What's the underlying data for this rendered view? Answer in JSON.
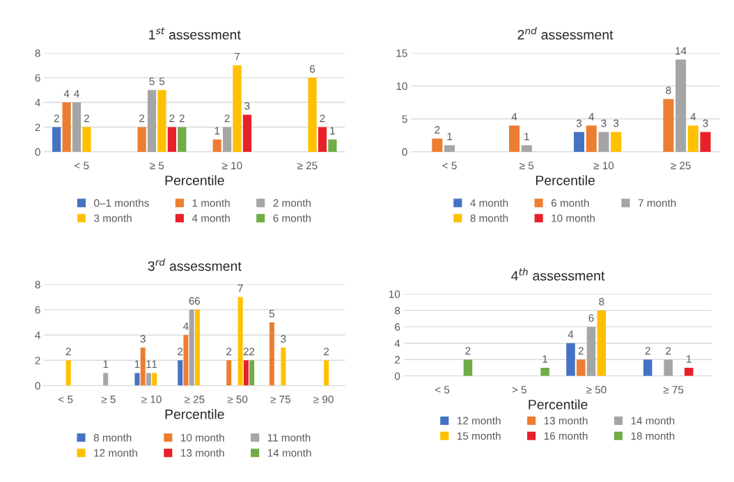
{
  "chart_data": [
    {
      "type": "bar",
      "title": "1$^{st}$ assessment",
      "xlabel": "Percentile",
      "categories": [
        "< 5",
        "≥ 5",
        "≥ 10",
        "≥ 25"
      ],
      "ylim": [
        0,
        8
      ],
      "yticks": [
        0,
        2,
        4,
        6,
        8
      ],
      "grid": "y",
      "legend": "bottom",
      "data_labels": true,
      "series": [
        {
          "name": "0–1 months",
          "color": "#4472c4",
          "values": [
            2,
            null,
            null,
            null
          ]
        },
        {
          "name": "1 month",
          "color": "#ed7d31",
          "values": [
            4,
            2,
            1,
            null
          ]
        },
        {
          "name": "2 month",
          "color": "#a5a5a5",
          "values": [
            4,
            5,
            2,
            null
          ]
        },
        {
          "name": "3 month",
          "color": "#ffc000",
          "values": [
            2,
            5,
            7,
            6
          ]
        },
        {
          "name": "4 month",
          "color": "#e8202a",
          "values": [
            null,
            2,
            3,
            2
          ]
        },
        {
          "name": "6 month",
          "color": "#70ad47",
          "values": [
            null,
            2,
            null,
            1
          ]
        }
      ]
    },
    {
      "type": "bar",
      "title": "2$^{nd}$ assessment",
      "xlabel": "Percentile",
      "categories": [
        "< 5",
        "≥ 5",
        "≥ 10",
        "≥ 25"
      ],
      "ylim": [
        0,
        15
      ],
      "yticks": [
        0,
        5,
        10,
        15
      ],
      "grid": "y",
      "legend": "bottom",
      "data_labels": true,
      "series": [
        {
          "name": "4 month",
          "color": "#4472c4",
          "values": [
            null,
            null,
            3,
            null
          ]
        },
        {
          "name": "6 month",
          "color": "#ed7d31",
          "values": [
            2,
            4,
            4,
            8
          ]
        },
        {
          "name": "7 month",
          "color": "#a5a5a5",
          "values": [
            1,
            1,
            3,
            14
          ]
        },
        {
          "name": "8 month",
          "color": "#ffc000",
          "values": [
            null,
            null,
            3,
            4
          ]
        },
        {
          "name": "10 month",
          "color": "#e8202a",
          "values": [
            null,
            null,
            null,
            3
          ]
        }
      ]
    },
    {
      "type": "bar",
      "title": "3$^{rd}$ assessment",
      "xlabel": "Percentile",
      "categories": [
        "< 5",
        "≥ 5",
        "≥ 10",
        "≥ 25",
        "≥ 50",
        "≥ 75",
        "≥ 90"
      ],
      "ylim": [
        0,
        8
      ],
      "yticks": [
        0,
        2,
        4,
        6,
        8
      ],
      "grid": "y",
      "legend": "bottom",
      "data_labels": true,
      "series": [
        {
          "name": "8 month",
          "color": "#4472c4",
          "values": [
            null,
            null,
            1,
            2,
            null,
            null,
            null
          ]
        },
        {
          "name": "10 month",
          "color": "#ed7d31",
          "values": [
            null,
            null,
            3,
            4,
            2,
            5,
            null
          ]
        },
        {
          "name": "11 month",
          "color": "#a5a5a5",
          "values": [
            null,
            1,
            1,
            6,
            null,
            null,
            null
          ]
        },
        {
          "name": "12 month",
          "color": "#ffc000",
          "values": [
            2,
            null,
            1,
            6,
            7,
            3,
            2
          ]
        },
        {
          "name": "13 month",
          "color": "#e8202a",
          "values": [
            null,
            null,
            null,
            null,
            2,
            null,
            null
          ]
        },
        {
          "name": "14 month",
          "color": "#70ad47",
          "values": [
            null,
            null,
            null,
            null,
            2,
            null,
            null
          ]
        }
      ]
    },
    {
      "type": "bar",
      "title": "4$^{th}$ assessment",
      "xlabel": "Percentile",
      "categories": [
        "< 5",
        "> 5",
        "≥ 50",
        "≥ 75"
      ],
      "ylim": [
        0,
        10
      ],
      "yticks": [
        0,
        2,
        4,
        6,
        8,
        10
      ],
      "grid": "y",
      "legend": "bottom",
      "data_labels": true,
      "series": [
        {
          "name": "12 month",
          "color": "#4472c4",
          "values": [
            null,
            null,
            4,
            2
          ]
        },
        {
          "name": "13 month",
          "color": "#ed7d31",
          "values": [
            null,
            null,
            2,
            null
          ]
        },
        {
          "name": "14 month",
          "color": "#a5a5a5",
          "values": [
            null,
            null,
            6,
            2
          ]
        },
        {
          "name": "15 month",
          "color": "#ffc000",
          "values": [
            null,
            null,
            8,
            null
          ]
        },
        {
          "name": "16 month",
          "color": "#e8202a",
          "values": [
            null,
            null,
            null,
            1
          ]
        },
        {
          "name": "18 month",
          "color": "#70ad47",
          "values": [
            2,
            1,
            null,
            null
          ]
        }
      ]
    }
  ]
}
